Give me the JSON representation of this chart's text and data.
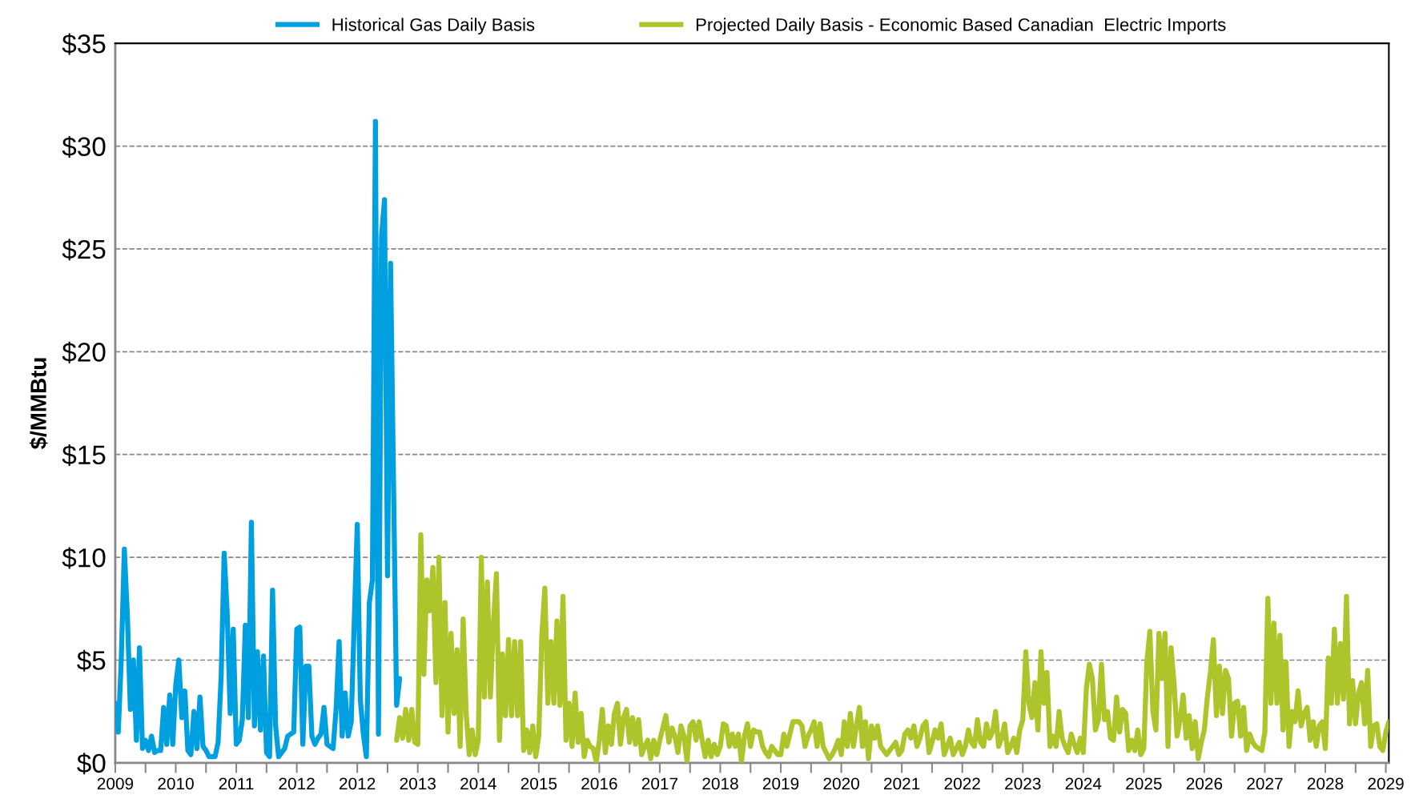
{
  "chart_data": {
    "type": "line",
    "ylabel": "$/MMBtu",
    "categories": [
      "2009",
      null,
      null,
      null,
      null,
      null,
      null,
      null,
      null,
      null,
      null,
      null,
      null,
      null,
      null,
      null,
      null,
      null,
      null,
      null,
      "2010",
      null,
      null,
      null,
      null,
      null,
      null,
      null,
      null,
      null,
      null,
      null,
      null,
      null,
      null,
      null,
      null,
      null,
      null,
      null,
      "2011",
      null,
      null,
      null,
      null,
      null,
      null,
      null,
      null,
      null,
      null,
      null,
      null,
      null,
      null,
      null,
      null,
      null,
      null,
      null,
      "2012",
      null,
      null,
      null,
      null,
      null,
      null,
      null,
      null,
      null,
      null,
      null,
      null,
      null,
      null,
      null,
      null,
      null,
      null,
      null,
      "2012",
      null,
      null,
      null,
      null,
      null,
      null,
      null,
      null,
      null,
      null,
      null,
      null,
      null,
      null,
      null,
      null,
      null,
      null,
      null,
      "2013",
      null,
      null,
      null,
      null,
      null,
      null,
      null,
      null,
      null,
      null,
      null,
      null,
      null,
      null,
      null,
      null,
      null,
      null,
      null,
      "2014",
      null,
      null,
      null,
      null,
      null,
      null,
      null,
      null,
      null,
      null,
      null,
      null,
      null,
      null,
      null,
      null,
      null,
      null,
      null,
      "2015",
      null,
      null,
      null,
      null,
      null,
      null,
      null,
      null,
      null,
      null,
      null,
      null,
      null,
      null,
      null,
      null,
      null,
      null,
      null,
      "2016",
      null,
      null,
      null,
      null,
      null,
      null,
      null,
      null,
      null,
      null,
      null,
      null,
      null,
      null,
      null,
      null,
      null,
      null,
      null,
      "2017",
      null,
      null,
      null,
      null,
      null,
      null,
      null,
      null,
      null,
      null,
      null,
      null,
      null,
      null,
      null,
      null,
      null,
      null,
      null,
      "2018",
      null,
      null,
      null,
      null,
      null,
      null,
      null,
      null,
      null,
      null,
      null,
      null,
      null,
      null,
      null,
      null,
      null,
      null,
      null,
      "2019",
      null,
      null,
      null,
      null,
      null,
      null,
      null,
      null,
      null,
      null,
      null,
      null,
      null,
      null,
      null,
      null,
      null,
      null,
      null,
      "2020",
      null,
      null,
      null,
      null,
      null,
      null,
      null,
      null,
      null,
      null,
      null,
      null,
      null,
      null,
      null,
      null,
      null,
      null,
      null,
      "2021",
      null,
      null,
      null,
      null,
      null,
      null,
      null,
      null,
      null,
      null,
      null,
      null,
      null,
      null,
      null,
      null,
      null,
      null,
      null,
      "2022",
      null,
      null,
      null,
      null,
      null,
      null,
      null,
      null,
      null,
      null,
      null,
      null,
      null,
      null,
      null,
      null,
      null,
      null,
      null,
      "2023",
      null,
      null,
      null,
      null,
      null,
      null,
      null,
      null,
      null,
      null,
      null,
      null,
      null,
      null,
      null,
      null,
      null,
      null,
      null,
      "2024",
      null,
      null,
      null,
      null,
      null,
      null,
      null,
      null,
      null,
      null,
      null,
      null,
      null,
      null,
      null,
      null,
      null,
      null,
      null,
      "2025",
      null,
      null,
      null,
      null,
      null,
      null,
      null,
      null,
      null,
      null,
      null,
      null,
      null,
      null,
      null,
      null,
      null,
      null,
      null,
      "2026",
      null,
      null,
      null,
      null,
      null,
      null,
      null,
      null,
      null,
      null,
      null,
      null,
      null,
      null,
      null,
      null,
      null,
      null,
      null,
      "2027",
      null,
      null,
      null,
      null,
      null,
      null,
      null,
      null,
      null,
      null,
      null,
      null,
      null,
      null,
      null,
      null,
      null,
      null,
      null,
      "2028",
      null,
      null,
      null,
      null,
      null,
      null,
      null,
      null,
      null,
      null,
      null,
      null,
      null,
      null,
      null,
      null,
      null,
      null,
      null,
      "2029",
      null
    ],
    "ylim": [
      0,
      35
    ],
    "yticks": [
      {
        "value": 0,
        "label": "$0"
      },
      {
        "value": 5,
        "label": "$5"
      },
      {
        "value": 10,
        "label": "$10"
      },
      {
        "value": 15,
        "label": "$15"
      },
      {
        "value": 20,
        "label": "$20"
      },
      {
        "value": 25,
        "label": "$25"
      },
      {
        "value": 30,
        "label": "$30"
      },
      {
        "value": 35,
        "label": "$35"
      }
    ],
    "grid": "y",
    "legend": "top",
    "marker": "none",
    "line_style": "solid",
    "series": [
      {
        "name": "Historical Gas Daily Basis",
        "color": "#00a0e0",
        "values": [
          2.9,
          1.5,
          5.1,
          10.4,
          7.2,
          2.6,
          5.0,
          1.1,
          5.6,
          0.7,
          1.1,
          0.6,
          1.3,
          0.5,
          0.6,
          0.6,
          2.7,
          0.9,
          3.3,
          0.9,
          3.8,
          5.0,
          2.2,
          3.5,
          0.6,
          0.4,
          2.5,
          0.7,
          3.2,
          0.8,
          0.6,
          0.3,
          0.3,
          0.3,
          1.0,
          4.2,
          10.2,
          7.3,
          2.4,
          6.5,
          0.9,
          1.1,
          2.1,
          6.7,
          2.2,
          11.7,
          1.8,
          5.4,
          1.6,
          5.2,
          0.5,
          0.3,
          8.4,
          1.8,
          0.3,
          0.5,
          0.7,
          1.3,
          1.4,
          1.5,
          6.5,
          6.6,
          0.9,
          4.7,
          4.7,
          1.3,
          0.9,
          1.2,
          1.4,
          2.7,
          0.9,
          0.8,
          0.7,
          2.6,
          5.9,
          1.3,
          3.4,
          1.3,
          2.0,
          6.9,
          11.6,
          3.1,
          1.4,
          0.3,
          7.8,
          8.9,
          31.2,
          1.4,
          25.6,
          27.4,
          9.1,
          24.3,
          13.5,
          2.8,
          4.1,
          null,
          null,
          null,
          null,
          null,
          null,
          null,
          null,
          null,
          null,
          null,
          null,
          null,
          null,
          null,
          null,
          null,
          null,
          null,
          null,
          null,
          null,
          null,
          null,
          null,
          null,
          null,
          null,
          null,
          null,
          null,
          null,
          null,
          null,
          null,
          null,
          null,
          null,
          null,
          null,
          null,
          null,
          null,
          null,
          null,
          null,
          null,
          null,
          null,
          null,
          null,
          null,
          null,
          null,
          null,
          null,
          null,
          null,
          null,
          null,
          null,
          null,
          null,
          null,
          null,
          null,
          null,
          null,
          null,
          null,
          null,
          null,
          null,
          null,
          null,
          null,
          null,
          null,
          null,
          null,
          null,
          null,
          null,
          null,
          null,
          null,
          null,
          null,
          null,
          null,
          null,
          null,
          null,
          null,
          null,
          null,
          null,
          null,
          null,
          null,
          null,
          null,
          null,
          null,
          null,
          null,
          null,
          null,
          null,
          null,
          null,
          null,
          null,
          null,
          null,
          null,
          null,
          null,
          null,
          null,
          null,
          null,
          null,
          null,
          null,
          null,
          null,
          null,
          null,
          null,
          null,
          null,
          null,
          null,
          null,
          null,
          null,
          null,
          null,
          null,
          null,
          null,
          null,
          null,
          null,
          null,
          null,
          null,
          null,
          null,
          null,
          null,
          null,
          null,
          null,
          null,
          null,
          null,
          null,
          null,
          null,
          null,
          null,
          null,
          null,
          null,
          null,
          null,
          null,
          null,
          null,
          null,
          null,
          null,
          null,
          null,
          null,
          null,
          null,
          null,
          null,
          null,
          null,
          null,
          null,
          null,
          null,
          null,
          null,
          null,
          null,
          null,
          null,
          null,
          null,
          null,
          null,
          null,
          null,
          null,
          null,
          null,
          null,
          null,
          null,
          null,
          null,
          null,
          null,
          null,
          null,
          null,
          null,
          null,
          null,
          null,
          null,
          null,
          null,
          null,
          null,
          null,
          null,
          null,
          null,
          null,
          null,
          null,
          null,
          null,
          null,
          null,
          null,
          null,
          null,
          null,
          null,
          null,
          null,
          null,
          null,
          null,
          null,
          null,
          null,
          null,
          null,
          null,
          null,
          null,
          null,
          null,
          null,
          null,
          null,
          null,
          null,
          null,
          null,
          null,
          null,
          null,
          null,
          null,
          null,
          null,
          null,
          null,
          null,
          null,
          null,
          null,
          null,
          null,
          null,
          null,
          null,
          null,
          null,
          null,
          null,
          null,
          null,
          null,
          null,
          null,
          null,
          null,
          null,
          null,
          null,
          null,
          null,
          null,
          null,
          null,
          null,
          null,
          null,
          null,
          null,
          null,
          null,
          null,
          null,
          null,
          null,
          null,
          null,
          null,
          null,
          null,
          null,
          null,
          null,
          null,
          null,
          null,
          null,
          null,
          null,
          null,
          null,
          null,
          null,
          null,
          null
        ]
      },
      {
        "name": "Projected Daily Basis - Economic Based Canadian  Electric Imports",
        "color": "#adc42b",
        "values": [
          null,
          null,
          null,
          null,
          null,
          null,
          null,
          null,
          null,
          null,
          null,
          null,
          null,
          null,
          null,
          null,
          null,
          null,
          null,
          null,
          null,
          null,
          null,
          null,
          null,
          null,
          null,
          null,
          null,
          null,
          null,
          null,
          null,
          null,
          null,
          null,
          null,
          null,
          null,
          null,
          null,
          null,
          null,
          null,
          null,
          null,
          null,
          null,
          null,
          null,
          null,
          null,
          null,
          null,
          null,
          null,
          null,
          null,
          null,
          null,
          null,
          null,
          null,
          null,
          null,
          null,
          null,
          null,
          null,
          null,
          null,
          null,
          null,
          null,
          null,
          null,
          null,
          null,
          null,
          null,
          null,
          null,
          null,
          null,
          null,
          null,
          null,
          null,
          null,
          null,
          null,
          null,
          null,
          1.1,
          2.2,
          1.2,
          2.6,
          1.1,
          2.6,
          1.0,
          0.9,
          11.1,
          4.3,
          8.9,
          7.4,
          9.5,
          3.9,
          10.0,
          2.3,
          7.8,
          1.5,
          6.3,
          2.4,
          5.5,
          0.8,
          7.0,
          2.4,
          0.4,
          1.6,
          0.4,
          1.1,
          10.0,
          3.2,
          8.8,
          3.2,
          6.8,
          9.2,
          1.1,
          5.3,
          2.3,
          6.0,
          2.3,
          5.9,
          2.3,
          5.9,
          0.6,
          1.6,
          0.5,
          1.8,
          0.3,
          1.3,
          6.2,
          8.5,
          2.9,
          5.9,
          2.9,
          6.9,
          2.8,
          8.1,
          1.1,
          2.9,
          0.8,
          3.4,
          1.0,
          2.4,
          0.3,
          1.1,
          0.8,
          0.7,
          0.05,
          1.1,
          2.6,
          0.5,
          1.8,
          0.9,
          2.4,
          2.9,
          0.9,
          2.2,
          2.6,
          1.0,
          2.2,
          0.9,
          2.1,
          0.4,
          0.8,
          1.1,
          0.2,
          1.1,
          0.4,
          1.1,
          1.7,
          2.3,
          1.0,
          1.7,
          1.3,
          0.5,
          1.8,
          1.3,
          0.05,
          1.8,
          2.0,
          1.1,
          2.0,
          1.1,
          0.3,
          1.1,
          0.3,
          0.9,
          0.4,
          0.8,
          1.9,
          1.8,
          0.8,
          1.4,
          0.8,
          1.4,
          0.05,
          1.3,
          1.9,
          0.8,
          1.6,
          1.5,
          1.5,
          0.8,
          0.5,
          0.3,
          0.8,
          0.6,
          0.4,
          0.4,
          1.4,
          0.8,
          1.4,
          2.0,
          2.0,
          2.0,
          1.8,
          0.8,
          1.3,
          1.6,
          2.0,
          0.8,
          1.9,
          0.8,
          0.5,
          0.2,
          0.4,
          0.7,
          1.1,
          0.4,
          2.0,
          0.8,
          2.4,
          0.8,
          1.8,
          2.7,
          0.8,
          2.0,
          0.2,
          1.8,
          1.2,
          1.8,
          0.8,
          0.6,
          0.4,
          0.6,
          0.8,
          1.0,
          0.4,
          0.6,
          1.4,
          1.6,
          1.2,
          1.8,
          0.8,
          1.2,
          1.8,
          2.0,
          0.5,
          1.0,
          1.6,
          1.2,
          1.9,
          0.4,
          0.8,
          1.2,
          0.4,
          0.7,
          1.0,
          0.4,
          0.8,
          1.6,
          1.0,
          0.8,
          2.1,
          1.0,
          0.8,
          1.9,
          1.2,
          1.5,
          2.5,
          0.8,
          1.2,
          1.9,
          0.5,
          0.8,
          1.2,
          0.5,
          1.6,
          2.1,
          5.4,
          2.9,
          2.2,
          3.9,
          1.6,
          5.4,
          2.9,
          4.4,
          0.8,
          1.3,
          0.8,
          2.5,
          1.2,
          0.8,
          0.5,
          1.4,
          0.9,
          0.5,
          1.2,
          0.5,
          3.6,
          4.8,
          4.1,
          1.6,
          2.1,
          4.8,
          2.1,
          2.5,
          1.2,
          1.1,
          3.2,
          1.5,
          2.6,
          2.4,
          0.6,
          1.1,
          0.6,
          1.6,
          0.4,
          0.7,
          4.9,
          6.4,
          2.5,
          1.6,
          6.3,
          4.1,
          6.3,
          0.8,
          5.6,
          3.9,
          1.3,
          2.1,
          3.3,
          1.2,
          2.3,
          0.7,
          2.0,
          0.2,
          1.0,
          1.6,
          3.2,
          4.4,
          6.0,
          2.3,
          4.7,
          2.4,
          4.5,
          4.1,
          1.3,
          2.9,
          3.0,
          1.3,
          2.7,
          0.6,
          1.4,
          1.0,
          0.8,
          0.7,
          0.6,
          1.5,
          8.0,
          2.9,
          6.8,
          2.9,
          6.2,
          1.6,
          4.9,
          0.8,
          2.5,
          2.0,
          3.5,
          1.8,
          2.4,
          2.7,
          1.1,
          2.0,
          0.8,
          1.8,
          2.0,
          0.7,
          5.1,
          2.9,
          6.5,
          2.9,
          5.8,
          3.1,
          8.1,
          1.9,
          4.0,
          1.9,
          3.4,
          3.9,
          1.9,
          4.5,
          0.8,
          1.8,
          1.9,
          0.8,
          0.6,
          1.5,
          2.0
        ]
      }
    ]
  }
}
